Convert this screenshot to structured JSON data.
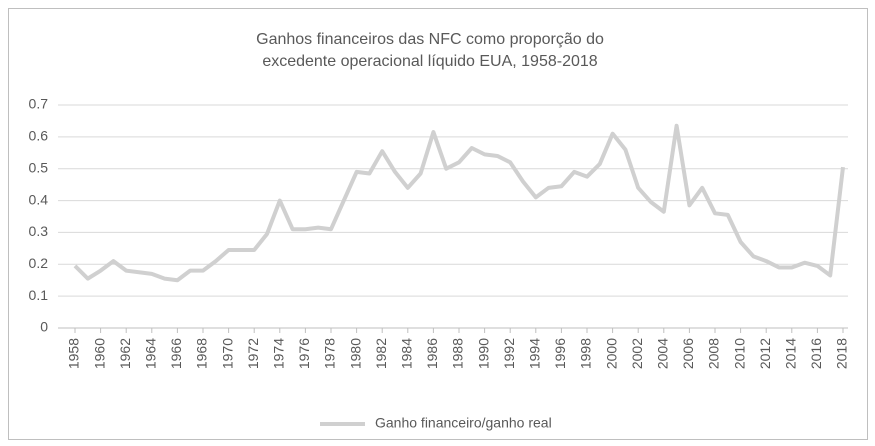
{
  "chart_data": {
    "type": "line",
    "title": [
      "Ganhos financeiros das NFC como proporção do",
      "excedente operacional líquido EUA, 1958-2018"
    ],
    "x": [
      1958,
      1959,
      1960,
      1961,
      1962,
      1963,
      1964,
      1965,
      1966,
      1967,
      1968,
      1969,
      1970,
      1971,
      1972,
      1973,
      1974,
      1975,
      1976,
      1977,
      1978,
      1979,
      1980,
      1981,
      1982,
      1983,
      1984,
      1985,
      1986,
      1987,
      1988,
      1989,
      1990,
      1991,
      1992,
      1993,
      1994,
      1995,
      1996,
      1997,
      1998,
      1999,
      2000,
      2001,
      2002,
      2003,
      2004,
      2005,
      2006,
      2007,
      2008,
      2009,
      2010,
      2011,
      2012,
      2013,
      2014,
      2015,
      2016,
      2017,
      2018
    ],
    "series": [
      {
        "name": "Ganho financeiro/ganho real",
        "color": "#d0d0d0",
        "values": [
          0.195,
          0.155,
          0.18,
          0.21,
          0.18,
          0.175,
          0.17,
          0.155,
          0.15,
          0.18,
          0.18,
          0.21,
          0.245,
          0.245,
          0.245,
          0.295,
          0.4,
          0.31,
          0.31,
          0.315,
          0.31,
          0.4,
          0.49,
          0.485,
          0.555,
          0.49,
          0.44,
          0.485,
          0.615,
          0.5,
          0.52,
          0.565,
          0.545,
          0.54,
          0.52,
          0.46,
          0.41,
          0.44,
          0.445,
          0.49,
          0.475,
          0.515,
          0.61,
          0.56,
          0.44,
          0.395,
          0.365,
          0.635,
          0.385,
          0.44,
          0.36,
          0.355,
          0.27,
          0.225,
          0.21,
          0.19,
          0.19,
          0.205,
          0.195,
          0.165,
          0.505
        ]
      }
    ],
    "xlim": [
      1958,
      2018
    ],
    "xticks": [
      1958,
      1960,
      1962,
      1964,
      1966,
      1968,
      1970,
      1972,
      1974,
      1976,
      1978,
      1980,
      1982,
      1984,
      1986,
      1988,
      1990,
      1992,
      1994,
      1996,
      1998,
      2000,
      2002,
      2004,
      2006,
      2008,
      2010,
      2012,
      2014,
      2016,
      2018
    ],
    "ylim": [
      0,
      0.7
    ],
    "yticks": [
      0,
      0.1,
      0.2,
      0.3,
      0.4,
      0.5,
      0.6,
      0.7
    ],
    "grid": true,
    "legend": "bottom"
  }
}
